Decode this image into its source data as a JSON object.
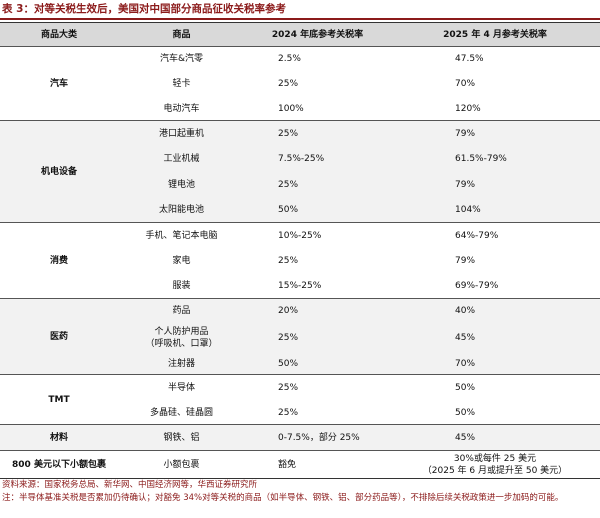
{
  "header": {
    "title": "表 3：对等关税生效后，美国对中国部分商品征收关税率参考"
  },
  "table": {
    "columns": [
      "商品大类",
      "商品",
      "2024 年底参考关税率",
      "2025 年 4 月参考关税率"
    ],
    "groups": [
      {
        "category": "汽车",
        "items": [
          {
            "name": "汽车&汽零",
            "rate_2024": "2.5%",
            "rate_2025": "47.5%"
          },
          {
            "name": "轻卡",
            "rate_2024": "25%",
            "rate_2025": "70%"
          },
          {
            "name": "电动汽车",
            "rate_2024": "100%",
            "rate_2025": "120%"
          }
        ]
      },
      {
        "category": "机电设备",
        "items": [
          {
            "name": "港口起重机",
            "rate_2024": "25%",
            "rate_2025": "79%"
          },
          {
            "name": "工业机械",
            "rate_2024": "7.5%-25%",
            "rate_2025": "61.5%-79%"
          },
          {
            "name": "锂电池",
            "rate_2024": "25%",
            "rate_2025": "79%"
          },
          {
            "name": "太阳能电池",
            "rate_2024": "50%",
            "rate_2025": "104%"
          }
        ]
      },
      {
        "category": "消费",
        "items": [
          {
            "name": "手机、笔记本电脑",
            "rate_2024": "10%-25%",
            "rate_2025": "64%-79%"
          },
          {
            "name": "家电",
            "rate_2024": "25%",
            "rate_2025": "79%"
          },
          {
            "name": "服装",
            "rate_2024": "15%-25%",
            "rate_2025": "69%-79%"
          }
        ]
      },
      {
        "category": "医药",
        "items": [
          {
            "name": "药品",
            "rate_2024": "20%",
            "rate_2025": "40%"
          },
          {
            "name": [
              "个人防护用品",
              "（呼吸机、口罩）"
            ],
            "rate_2024": "25%",
            "rate_2025": "45%"
          },
          {
            "name": "注射器",
            "rate_2024": "50%",
            "rate_2025": "70%"
          }
        ]
      },
      {
        "category": "TMT",
        "items": [
          {
            "name": "半导体",
            "rate_2024": "25%",
            "rate_2025": "50%"
          },
          {
            "name": "多晶硅、硅晶圆",
            "rate_2024": "25%",
            "rate_2025": "50%"
          }
        ]
      },
      {
        "category": "材料",
        "items": [
          {
            "name": "钢铁、铝",
            "rate_2024": "0-7.5%，部分 25%",
            "rate_2025": "45%"
          }
        ]
      },
      {
        "category": "800 美元以下小额包裹",
        "items": [
          {
            "name": "小额包裹",
            "rate_2024": "豁免",
            "rate_2025": [
              "30%或每件 25 美元",
              "（2025 年 6 月或提升至 50 美元）"
            ]
          }
        ]
      }
    ]
  },
  "notes": [
    "资料来源：国家税务总局、新华网、中国经济网等，华西证券研究所",
    "注：半导体基准关税是否累加仍待确认；对豁免 34%对等关税的商品（如半导体、钢铁、铝、部分药品等），不排除后续关税政策进一步加码的可能。"
  ]
}
